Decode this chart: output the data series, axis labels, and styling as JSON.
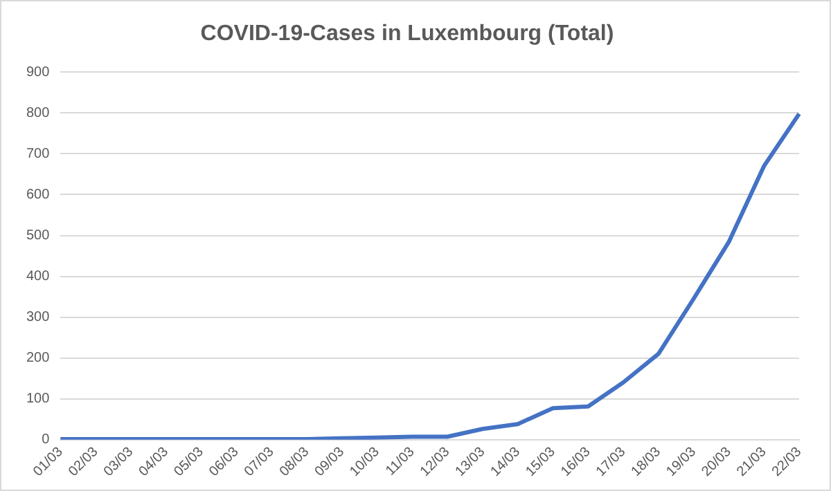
{
  "chart_data": {
    "type": "line",
    "title": "COVID-19-Cases in Luxembourg (Total)",
    "categories": [
      "01/03",
      "02/03",
      "03/03",
      "04/03",
      "05/03",
      "06/03",
      "07/03",
      "08/03",
      "09/03",
      "10/03",
      "11/03",
      "12/03",
      "13/03",
      "14/03",
      "15/03",
      "16/03",
      "17/03",
      "18/03",
      "19/03",
      "20/03",
      "21/03",
      "22/03"
    ],
    "series": [
      {
        "color": "#4472c4",
        "values": [
          1,
          1,
          1,
          1,
          1,
          1,
          1,
          1,
          3,
          5,
          7,
          7,
          26,
          38,
          77,
          81,
          140,
          210,
          345,
          484,
          670,
          798
        ]
      }
    ],
    "ylim": [
      0,
      900
    ],
    "yticks": [
      0,
      100,
      200,
      300,
      400,
      500,
      600,
      700,
      800,
      900
    ],
    "grid": "y",
    "legend": false,
    "marker": "none"
  }
}
